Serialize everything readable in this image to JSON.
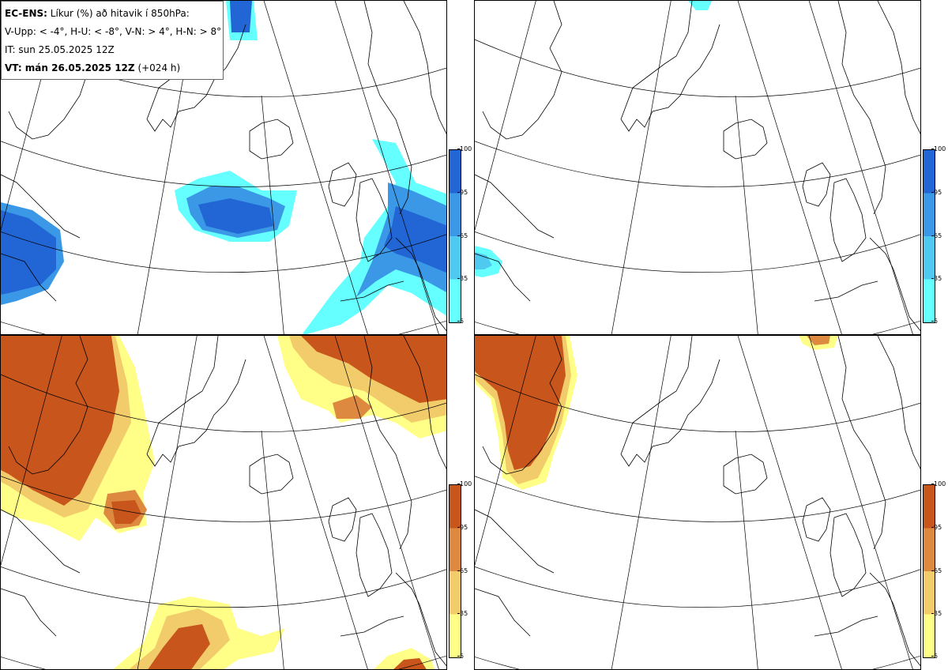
{
  "info": {
    "model": "EC-ENS:",
    "title_rest": "Líkur (%) að hitavik í 850hPa:",
    "line2": "V-Upp: < -4°, H-U: < -8°, V-N: > 4°, H-N: > 8°",
    "line3": "IT: sun 25.05.2025 12Z",
    "vt_label": "VT: mán 26.05.2025 12Z",
    "vt_lead": "(+024 h)"
  },
  "colors": {
    "cold_scale": [
      "#66ffff",
      "#4fc9f0",
      "#3a98e6",
      "#2266d6"
    ],
    "warm_scale": [
      "#ffff88",
      "#f2cc6a",
      "#dd8a40",
      "#c8561c"
    ],
    "coast": "#000000",
    "grid": "#000000"
  },
  "legend_cold": {
    "ticks": [
      "100",
      "95",
      "65",
      "35",
      "5"
    ]
  },
  "legend_warm": {
    "ticks": [
      "100",
      "95",
      "65",
      "35",
      "5"
    ]
  },
  "panels": [
    {
      "id": "upper-left",
      "variable": "cold anomaly < -4°"
    },
    {
      "id": "upper-right",
      "variable": "cold anomaly < -8°"
    },
    {
      "id": "lower-left",
      "variable": "warm anomaly > 4°"
    },
    {
      "id": "lower-right",
      "variable": "warm anomaly > 8°"
    }
  ]
}
